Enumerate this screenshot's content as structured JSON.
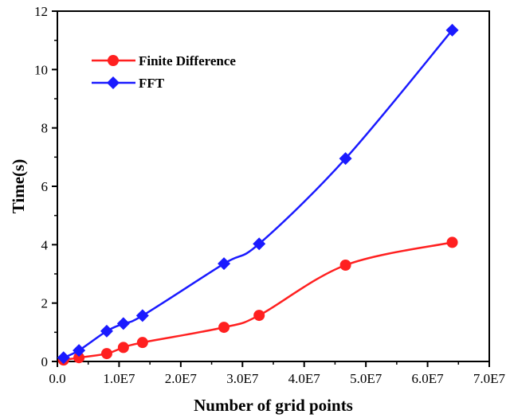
{
  "chart_data": {
    "type": "line",
    "xlabel": "Number of grid points",
    "ylabel": "Time(s)",
    "xlim": [
      0,
      70000000
    ],
    "ylim": [
      0,
      12
    ],
    "x_ticks": [
      {
        "value": 0,
        "label": "0.0"
      },
      {
        "value": 10000000,
        "label": "1.0E7"
      },
      {
        "value": 20000000,
        "label": "2.0E7"
      },
      {
        "value": 30000000,
        "label": "3.0E7"
      },
      {
        "value": 40000000,
        "label": "4.0E7"
      },
      {
        "value": 50000000,
        "label": "5.0E7"
      },
      {
        "value": 60000000,
        "label": "6.0E7"
      },
      {
        "value": 70000000,
        "label": "7.0E7"
      }
    ],
    "y_ticks": [
      {
        "value": 0,
        "label": "0"
      },
      {
        "value": 2,
        "label": "2"
      },
      {
        "value": 4,
        "label": "4"
      },
      {
        "value": 6,
        "label": "6"
      },
      {
        "value": 8,
        "label": "8"
      },
      {
        "value": 10,
        "label": "10"
      },
      {
        "value": 12,
        "label": "12"
      }
    ],
    "grid": false,
    "legend_position": "top-left",
    "series": [
      {
        "name": "Finite Difference",
        "color": "#ff2020",
        "marker": "circle",
        "x": [
          1000000,
          3500000,
          8000000,
          10700000,
          13800000,
          27000000,
          32700000,
          46700000,
          64000000
        ],
        "y": [
          0.05,
          0.13,
          0.27,
          0.48,
          0.65,
          1.17,
          1.58,
          3.3,
          4.08
        ]
      },
      {
        "name": "FFT",
        "color": "#1a1aff",
        "marker": "diamond",
        "x": [
          1000000,
          3500000,
          8000000,
          10700000,
          13800000,
          27000000,
          32700000,
          46700000,
          64000000
        ],
        "y": [
          0.13,
          0.38,
          1.04,
          1.3,
          1.57,
          3.35,
          4.03,
          6.95,
          11.35
        ]
      }
    ]
  }
}
